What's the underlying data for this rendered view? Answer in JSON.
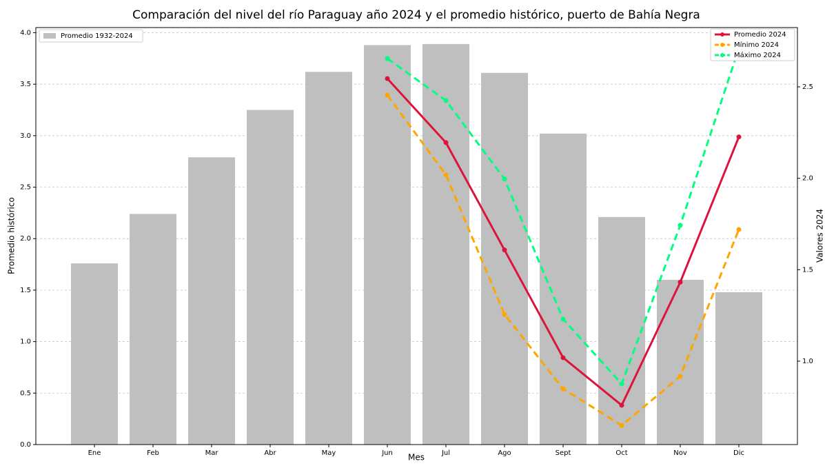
{
  "chart_data": {
    "type": "bar_line",
    "title": "Comparación del nivel del río Paraguay año 2024 y el promedio histórico, puerto de Bahía Negra",
    "xlabel": "Mes",
    "ylabel": "Promedio histórico",
    "y2label": "Valores 2024",
    "categories": [
      "Ene",
      "Feb",
      "Mar",
      "Abr",
      "May",
      "Jun",
      "Jul",
      "Ago",
      "Sept",
      "Oct",
      "Nov",
      "Dic"
    ],
    "bars": {
      "name": "Promedio 1932-2024",
      "color": "#bfbfbf",
      "values": [
        1.76,
        2.24,
        2.79,
        3.25,
        3.62,
        3.88,
        3.89,
        3.61,
        3.02,
        2.21,
        1.6,
        1.48
      ]
    },
    "series": [
      {
        "name": "Promedio 2024",
        "color": "#dc143c",
        "linestyle": "solid",
        "axis": "y2",
        "values": [
          null,
          null,
          null,
          null,
          null,
          2.545,
          2.195,
          1.608,
          1.019,
          0.759,
          1.432,
          2.226
        ]
      },
      {
        "name": "Mínimo 2024",
        "color": "#ffa500",
        "linestyle": "dashed",
        "axis": "y2",
        "values": [
          null,
          null,
          null,
          null,
          null,
          2.455,
          2.019,
          1.256,
          0.849,
          0.649,
          0.917,
          1.72
        ]
      },
      {
        "name": "Máximo 2024",
        "color": "#00ff7f",
        "linestyle": "dashed",
        "axis": "y2",
        "values": [
          null,
          null,
          null,
          null,
          null,
          2.655,
          2.425,
          1.996,
          1.23,
          0.876,
          1.743,
          2.71
        ]
      }
    ],
    "ylim": [
      0,
      4.05
    ],
    "yticks": [
      {
        "value": 0,
        "label": "0.0"
      },
      0.5,
      {
        "value": 1,
        "label": "1.0"
      },
      1.5,
      {
        "value": 2,
        "label": "2.0"
      },
      2.5,
      {
        "value": 3,
        "label": "3.0"
      },
      3.5,
      {
        "value": 4,
        "label": "4.0"
      }
    ],
    "y2lim": [
      0.544,
      2.824
    ],
    "y2ticks": [
      {
        "value": 1,
        "label": "1.0"
      },
      1.5,
      {
        "value": 2,
        "label": "2.0"
      },
      2.5
    ],
    "grid": true
  }
}
